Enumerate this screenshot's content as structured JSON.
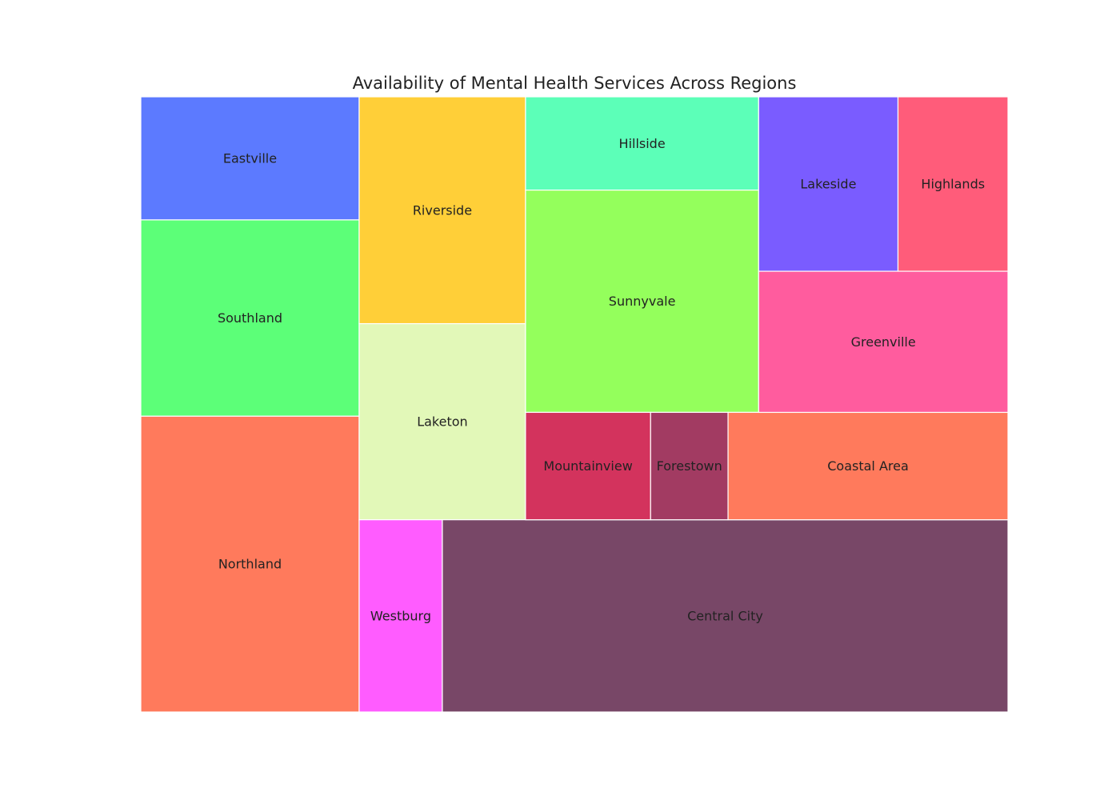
{
  "chart_data": {
    "type": "treemap",
    "title": "Availability of Mental Health Services Across Regions",
    "items": [
      {
        "label": "Northland",
        "value": 101,
        "color": "#ff7a5c"
      },
      {
        "label": "Southland",
        "value": 67,
        "color": "#5cff78"
      },
      {
        "label": "Eastville",
        "value": 42,
        "color": "#5c7aff"
      },
      {
        "label": "Riverside",
        "value": 59,
        "color": "#ffcf38"
      },
      {
        "label": "Laketon",
        "value": 51,
        "color": "#e2f8b8"
      },
      {
        "label": "Westburg",
        "value": 25,
        "color": "#ff5cff"
      },
      {
        "label": "Central City",
        "value": 170,
        "color": "#784767"
      },
      {
        "label": "Hillside",
        "value": 34,
        "color": "#5cffb8"
      },
      {
        "label": "Sunnyvale",
        "value": 81,
        "color": "#94ff5c"
      },
      {
        "label": "Mountainview",
        "value": 21,
        "color": "#d3335d"
      },
      {
        "label": "Forestown",
        "value": 13,
        "color": "#a23b62"
      },
      {
        "label": "Coastal Area",
        "value": 47,
        "color": "#ff7a5c"
      },
      {
        "label": "Lakeside",
        "value": 38,
        "color": "#7a5cff"
      },
      {
        "label": "Highlands",
        "value": 30,
        "color": "#ff5c7a"
      },
      {
        "label": "Greenville",
        "value": 55,
        "color": "#ff5c9e"
      }
    ]
  }
}
